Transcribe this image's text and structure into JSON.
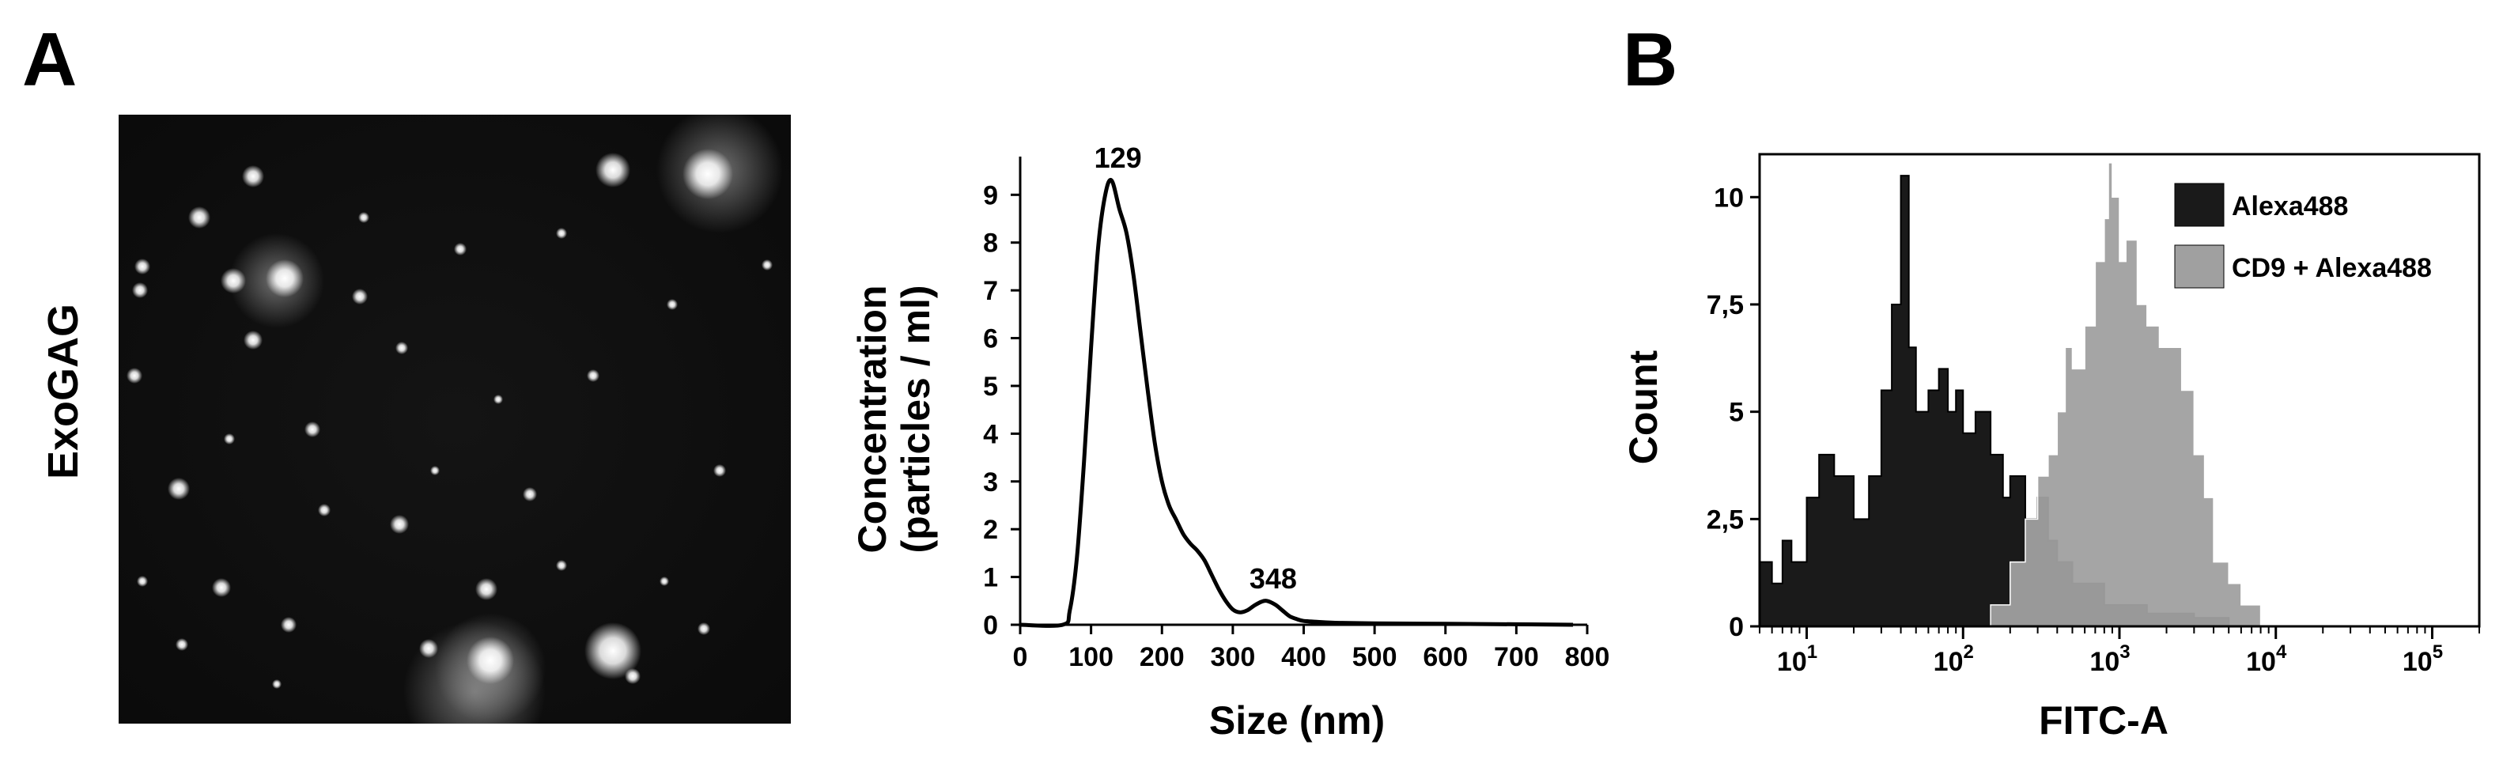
{
  "panel_a": {
    "letter": "A",
    "sample_label": "ExoGAG"
  },
  "panel_b": {
    "letter": "B"
  },
  "chart_data": [
    {
      "type": "line",
      "panel": "A",
      "xlabel": "Size (nm)",
      "ylabel_line1": "Concentration",
      "ylabel_line2": "(particles / ml)",
      "xlim": [
        0,
        800
      ],
      "ylim": [
        0,
        9.8
      ],
      "x_ticks": [
        0,
        100,
        200,
        300,
        400,
        500,
        600,
        700,
        800
      ],
      "y_ticks": [
        0,
        1,
        2,
        3,
        4,
        5,
        6,
        7,
        8,
        9
      ],
      "annotations": [
        {
          "text": "129",
          "x": 129,
          "y": 9.3
        },
        {
          "text": "348",
          "x": 348,
          "y": 0.5
        }
      ],
      "series": [
        {
          "x": [
            0,
            60,
            70,
            80,
            90,
            100,
            110,
            120,
            129,
            140,
            150,
            160,
            170,
            180,
            190,
            200,
            210,
            220,
            230,
            240,
            250,
            260,
            270,
            280,
            290,
            300,
            310,
            320,
            330,
            340,
            348,
            360,
            370,
            380,
            390,
            400,
            420,
            450,
            500,
            600,
            700,
            780
          ],
          "y": [
            0,
            0,
            0.3,
            1.4,
            3.4,
            5.8,
            7.9,
            9.0,
            9.3,
            8.7,
            8.2,
            7.3,
            6.1,
            4.9,
            3.8,
            3.0,
            2.5,
            2.2,
            1.9,
            1.7,
            1.55,
            1.35,
            1.05,
            0.75,
            0.5,
            0.32,
            0.26,
            0.3,
            0.4,
            0.48,
            0.5,
            0.42,
            0.3,
            0.18,
            0.12,
            0.08,
            0.06,
            0.04,
            0.03,
            0.02,
            0.01,
            0.0
          ]
        }
      ],
      "grid": false
    },
    {
      "type": "area",
      "panel": "B",
      "xlabel": "FITC-A",
      "ylabel": "Count",
      "x_scale": "log",
      "xlim": [
        5,
        200000
      ],
      "ylim": [
        0,
        11
      ],
      "y_ticks": [
        0,
        2.5,
        5,
        7.5,
        10
      ],
      "y_tick_labels": [
        "0",
        "2,5",
        "5",
        "7,5",
        "10"
      ],
      "x_ticks": [
        10,
        100,
        1000,
        10000,
        100000
      ],
      "x_tick_base": "10",
      "x_tick_exponents": [
        "1",
        "2",
        "3",
        "4",
        "5"
      ],
      "legend_position": "top-right",
      "grid": false,
      "series": [
        {
          "name": "Alexa488",
          "color": "#1a1a1a",
          "x": [
            5,
            6,
            7,
            8,
            10,
            12,
            15,
            20,
            25,
            30,
            35,
            40,
            45,
            50,
            60,
            70,
            80,
            90,
            100,
            120,
            150,
            180,
            200,
            250,
            300,
            350,
            400,
            500,
            600,
            800,
            1000,
            1500,
            2000,
            3000,
            5000
          ],
          "y": [
            1.5,
            1.0,
            2.0,
            1.5,
            3.0,
            4.0,
            3.5,
            2.5,
            3.5,
            5.5,
            7.5,
            10.5,
            6.5,
            5.0,
            5.5,
            6.0,
            5.0,
            5.5,
            4.5,
            5.0,
            4.0,
            3.0,
            3.5,
            2.5,
            3.0,
            2.0,
            1.5,
            1.0,
            1.0,
            0.5,
            0.5,
            0.3,
            0.3,
            0.2,
            0.0
          ]
        },
        {
          "name": "CD9 + Alexa488",
          "color": "#a0a0a0",
          "x": [
            150,
            200,
            250,
            300,
            350,
            400,
            450,
            500,
            600,
            700,
            800,
            850,
            900,
            1000,
            1100,
            1300,
            1500,
            1800,
            2000,
            2500,
            3000,
            3500,
            4000,
            5000,
            6000,
            8000
          ],
          "y": [
            0.5,
            1.5,
            2.5,
            3.5,
            4.0,
            5.0,
            6.5,
            6.0,
            7.0,
            8.5,
            9.5,
            10.8,
            10.0,
            8.5,
            9.0,
            7.5,
            7.0,
            6.5,
            6.5,
            5.5,
            4.0,
            3.0,
            1.5,
            1.0,
            0.5,
            0.0
          ]
        }
      ]
    }
  ]
}
